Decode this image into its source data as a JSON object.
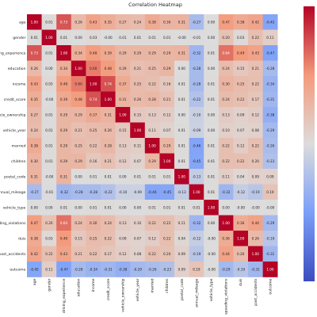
{
  "chart_data": {
    "type": "heatmap",
    "title": "Correlation Heatmap",
    "row_labels": [
      "age",
      "gender",
      "driving_experience",
      "education",
      "income",
      "credit_score",
      "vehicle_ownership",
      "vehicle_year",
      "married",
      "children",
      "postal_code",
      "annual_mileage",
      "vehicle_type",
      "speeding_violations",
      "duis",
      "past_accidents",
      "outcome"
    ],
    "col_labels": [
      "age",
      "gender",
      "driving_experience",
      "education",
      "income",
      "credit_score",
      "vehicle_ownership",
      "vehicle_year",
      "married",
      "children",
      "postal_code",
      "annual_mileage",
      "vehicle_type",
      "speeding_violations",
      "duis",
      "past_accidents",
      "outcome"
    ],
    "values": [
      [
        1.0,
        0.01,
        0.73,
        0.26,
        0.43,
        0.35,
        0.27,
        0.24,
        0.38,
        0.3,
        0.31,
        -0.27,
        0.0,
        0.47,
        0.38,
        0.42,
        -0.45
      ],
      [
        0.01,
        1.0,
        0.01,
        0.0,
        0.03,
        -0.0,
        0.01,
        0.01,
        0.01,
        0.01,
        -0.0,
        -0.01,
        0.0,
        0.2,
        0.03,
        0.22,
        0.11
      ],
      [
        0.73,
        0.01,
        1.0,
        0.34,
        0.48,
        0.39,
        0.29,
        0.29,
        0.29,
        0.29,
        0.31,
        -0.32,
        0.01,
        0.64,
        0.49,
        0.43,
        -0.47
      ],
      [
        0.26,
        0.0,
        0.34,
        1.0,
        0.6,
        0.48,
        0.29,
        0.21,
        0.25,
        0.29,
        0.0,
        -0.28,
        0.0,
        0.24,
        0.15,
        0.21,
        -0.28
      ],
      [
        0.43,
        0.03,
        0.48,
        0.6,
        1.0,
        0.74,
        0.37,
        0.25,
        0.22,
        0.16,
        0.01,
        -0.28,
        0.01,
        0.3,
        0.25,
        0.22,
        -0.34
      ],
      [
        0.35,
        -0.0,
        0.39,
        0.48,
        0.74,
        1.0,
        0.31,
        0.26,
        0.28,
        0.21,
        0.01,
        -0.22,
        0.01,
        0.24,
        0.22,
        0.17,
        -0.31
      ],
      [
        0.27,
        0.01,
        0.29,
        0.29,
        0.37,
        0.31,
        1.0,
        0.15,
        0.13,
        0.12,
        0.0,
        -0.1,
        0.0,
        0.13,
        0.09,
        0.12,
        -0.38
      ],
      [
        0.24,
        0.01,
        0.29,
        0.21,
        0.25,
        0.26,
        0.15,
        1.0,
        0.11,
        0.07,
        0.01,
        -0.09,
        0.0,
        0.1,
        0.07,
        0.08,
        -0.29
      ],
      [
        0.38,
        0.01,
        0.29,
        0.25,
        0.22,
        0.28,
        0.13,
        0.11,
        1.0,
        0.29,
        0.01,
        -0.46,
        0.01,
        0.22,
        0.12,
        0.22,
        -0.26
      ],
      [
        0.3,
        0.01,
        0.29,
        0.29,
        0.16,
        0.21,
        0.12,
        0.07,
        0.29,
        1.0,
        0.01,
        -0.45,
        0.01,
        0.22,
        0.22,
        0.2,
        -0.23
      ],
      [
        0.31,
        -0.0,
        0.31,
        0.0,
        0.01,
        0.01,
        0.0,
        0.01,
        0.01,
        0.01,
        1.0,
        -0.13,
        0.01,
        0.11,
        0.04,
        0.09,
        0.09
      ],
      [
        -0.27,
        -0.01,
        -0.32,
        -0.28,
        -0.28,
        -0.22,
        -0.1,
        -0.09,
        -0.46,
        -0.45,
        -0.13,
        1.0,
        0.01,
        -0.32,
        -0.12,
        -0.19,
        0.19
      ],
      [
        0.0,
        0.0,
        0.01,
        0.0,
        0.01,
        0.01,
        0.0,
        0.0,
        0.01,
        0.01,
        0.01,
        0.01,
        1.0,
        0.0,
        -0.0,
        -0.0,
        -0.0
      ],
      [
        0.47,
        0.2,
        0.64,
        0.24,
        0.3,
        0.24,
        0.13,
        0.1,
        0.22,
        0.22,
        0.11,
        -0.32,
        0.0,
        1.0,
        0.36,
        0.44,
        -0.29
      ],
      [
        0.38,
        0.03,
        0.49,
        0.15,
        0.25,
        0.22,
        0.09,
        0.07,
        0.12,
        0.22,
        0.04,
        -0.12,
        -0.0,
        0.36,
        1.0,
        0.26,
        -0.19
      ],
      [
        0.42,
        0.22,
        0.43,
        0.21,
        0.22,
        0.17,
        0.12,
        0.08,
        0.22,
        0.2,
        0.09,
        -0.19,
        -0.0,
        0.44,
        0.26,
        1.0,
        -0.31
      ],
      [
        -0.45,
        0.11,
        -0.47,
        -0.28,
        -0.34,
        -0.31,
        -0.38,
        -0.29,
        -0.26,
        -0.23,
        0.09,
        0.19,
        -0.0,
        -0.29,
        -0.19,
        -0.31,
        1.0
      ]
    ],
    "vmin": -1.0,
    "vmax": 1.0,
    "colormap": "coolwarm",
    "colorbar_ticks": []
  }
}
